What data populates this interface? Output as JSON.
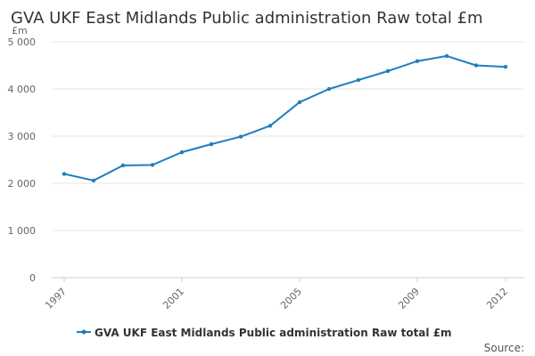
{
  "colors": {
    "series": "#1f7fbe",
    "grid": "#e6e6e6",
    "axis": "#c0d0e0",
    "text": "#333333",
    "muted": "#666666"
  },
  "source": {
    "label": "Source:"
  },
  "chart_data": {
    "type": "line",
    "title": "GVA UKF East Midlands Public administration Raw total £m",
    "ylabel": "£m",
    "xlabel": "",
    "ylim": [
      0,
      5000
    ],
    "y_ticks": [
      0,
      1000,
      2000,
      3000,
      4000,
      5000
    ],
    "y_tick_labels": [
      "0",
      "1 000",
      "2 000",
      "3 000",
      "4 000",
      "5 000"
    ],
    "x_ticks": [
      1997,
      2001,
      2005,
      2009,
      2012
    ],
    "x_tick_labels": [
      "1997",
      "2001",
      "2005",
      "2009",
      "2012"
    ],
    "xlim": [
      1997,
      2012
    ],
    "grid": true,
    "legend": "bottom",
    "series": [
      {
        "name": "GVA UKF East Midlands Public administration Raw total £m",
        "x": [
          1997,
          1998,
          1999,
          2000,
          2001,
          2002,
          2003,
          2004,
          2005,
          2006,
          2007,
          2008,
          2009,
          2010,
          2011,
          2012
        ],
        "values": [
          2200,
          2060,
          2380,
          2390,
          2660,
          2830,
          2990,
          3220,
          3720,
          4000,
          4190,
          4380,
          4590,
          4700,
          4500,
          4470
        ]
      }
    ]
  }
}
